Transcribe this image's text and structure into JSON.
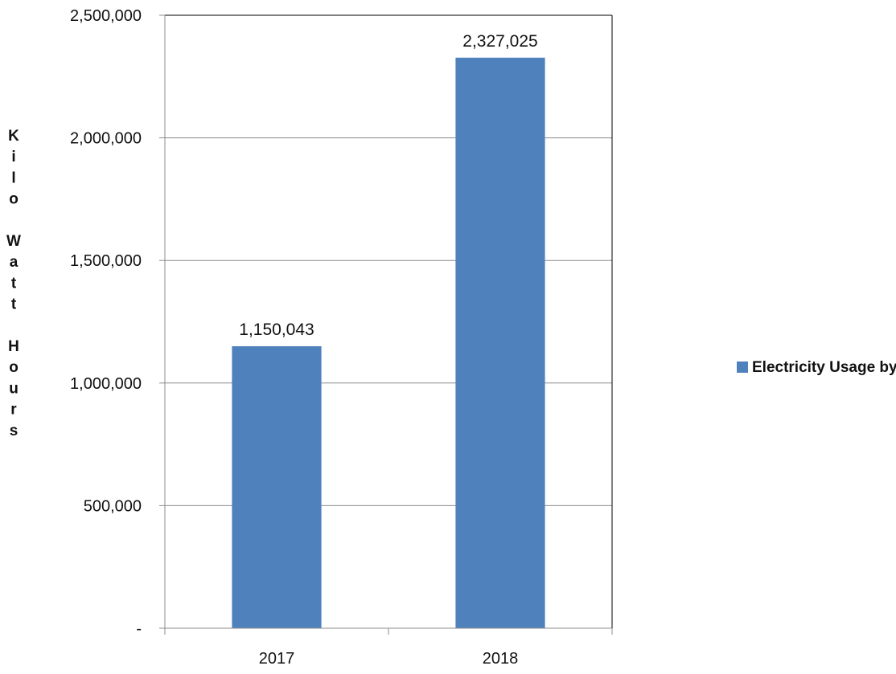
{
  "chart_data": {
    "type": "bar",
    "categories": [
      "2017",
      "2018"
    ],
    "series": [
      {
        "name": "Electricity Usage by AASB",
        "values": [
          1150043,
          2327025
        ],
        "color": "#4F81BD"
      }
    ],
    "data_labels": [
      "1,150,043",
      "2,327,025"
    ],
    "ylabel": "Kilo Watt Hours",
    "ylim": [
      0,
      2500000
    ],
    "yticks": [
      0,
      500000,
      1000000,
      1500000,
      2000000,
      2500000
    ],
    "ytick_labels": [
      "-",
      "500,000",
      "1,000,000",
      "1,500,000",
      "2,000,000",
      "2,500,000"
    ],
    "grid": true,
    "legend_position": "right"
  }
}
